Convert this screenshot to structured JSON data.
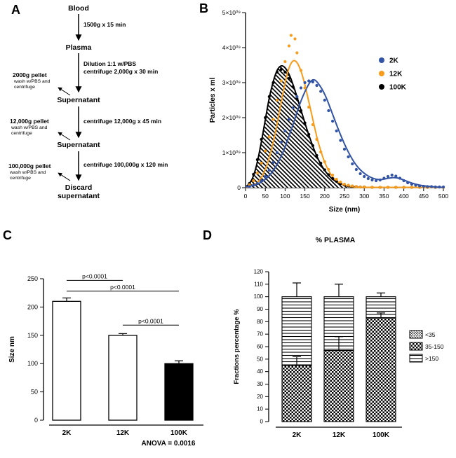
{
  "panels": {
    "a": "A",
    "b": "B",
    "c": "C",
    "d": "D"
  },
  "flowchart": {
    "blood": "Blood",
    "step1": "1500g x 15 min",
    "plasma": "Plasma",
    "step2": "Dilution 1:1 w/PBS\ncentrifuge 2,000g x 30 min",
    "supernatant1": "Supernatant",
    "pellet1": "2000g pellet",
    "pellet1_note": "wash w/PBS and\ncentrifuge",
    "step3": "centrifuge 12,000g x 45 min",
    "supernatant2": "Supernatant",
    "pellet2": "12,000g pellet",
    "pellet2_note": "wash w/PBS and\ncentrifuge",
    "step4": "centrifuge 100,000g x 120 min",
    "pellet3": "100,000g pellet",
    "pellet3_note": "wash w/PBS and\ncentrifuge",
    "discard": "Discard\nsupernatant"
  },
  "chart_data": [
    {
      "type": "line",
      "panel": "B",
      "xlabel": "Size (nm)",
      "ylabel": "Particles x ml",
      "xlim": [
        0,
        500
      ],
      "ylim": [
        0,
        5
      ],
      "y_unit": "×10⁹",
      "x_ticks": [
        0,
        50,
        100,
        150,
        200,
        250,
        300,
        350,
        400,
        450,
        500
      ],
      "y_ticks": [
        {
          "v": 0,
          "label": "0"
        },
        {
          "v": 1,
          "label": "1×10⁰⁹"
        },
        {
          "v": 2,
          "label": "2×10⁰⁹"
        },
        {
          "v": 3,
          "label": "3×10⁰⁹"
        },
        {
          "v": 4,
          "label": "4×10⁰⁹"
        },
        {
          "v": 5,
          "label": "5×10⁰⁹"
        }
      ],
      "legend_position": "upper-right",
      "series": [
        {
          "name": "2K",
          "color": "#3353a4",
          "line": [
            [
              0,
              0.02
            ],
            [
              20,
              0.06
            ],
            [
              40,
              0.15
            ],
            [
              60,
              0.33
            ],
            [
              80,
              0.65
            ],
            [
              100,
              1.15
            ],
            [
              120,
              1.8
            ],
            [
              140,
              2.5
            ],
            [
              160,
              2.98
            ],
            [
              170,
              3.1
            ],
            [
              180,
              3.05
            ],
            [
              200,
              2.7
            ],
            [
              220,
              2.1
            ],
            [
              240,
              1.5
            ],
            [
              260,
              1.0
            ],
            [
              280,
              0.62
            ],
            [
              300,
              0.4
            ],
            [
              320,
              0.27
            ],
            [
              340,
              0.22
            ],
            [
              360,
              0.27
            ],
            [
              380,
              0.3
            ],
            [
              400,
              0.22
            ],
            [
              420,
              0.13
            ],
            [
              440,
              0.07
            ],
            [
              460,
              0.04
            ],
            [
              480,
              0.02
            ],
            [
              500,
              0.01
            ]
          ],
          "dots": [
            [
              10,
              0.03
            ],
            [
              20,
              0.07
            ],
            [
              30,
              0.12
            ],
            [
              40,
              0.2
            ],
            [
              50,
              0.32
            ],
            [
              60,
              0.5
            ],
            [
              70,
              0.72
            ],
            [
              80,
              1.0
            ],
            [
              90,
              1.3
            ],
            [
              100,
              1.62
            ],
            [
              110,
              1.95
            ],
            [
              120,
              2.28
            ],
            [
              130,
              2.6
            ],
            [
              140,
              2.85
            ],
            [
              150,
              3.0
            ],
            [
              160,
              3.05
            ],
            [
              170,
              3.02
            ],
            [
              180,
              2.92
            ],
            [
              190,
              2.75
            ],
            [
              200,
              2.5
            ],
            [
              210,
              2.2
            ],
            [
              220,
              1.9
            ],
            [
              230,
              1.62
            ],
            [
              240,
              1.35
            ],
            [
              250,
              1.1
            ],
            [
              260,
              0.88
            ],
            [
              270,
              0.68
            ],
            [
              280,
              0.52
            ],
            [
              290,
              0.4
            ],
            [
              300,
              0.32
            ],
            [
              310,
              0.26
            ],
            [
              320,
              0.22
            ],
            [
              330,
              0.2
            ],
            [
              340,
              0.22
            ],
            [
              350,
              0.27
            ],
            [
              360,
              0.32
            ],
            [
              370,
              0.36
            ],
            [
              380,
              0.33
            ],
            [
              390,
              0.27
            ],
            [
              400,
              0.2
            ],
            [
              410,
              0.14
            ],
            [
              420,
              0.1
            ],
            [
              430,
              0.07
            ],
            [
              440,
              0.05
            ],
            [
              450,
              0.04
            ],
            [
              460,
              0.03
            ],
            [
              470,
              0.03
            ],
            [
              480,
              0.02
            ],
            [
              490,
              0.02
            ],
            [
              500,
              0.02
            ]
          ]
        },
        {
          "name": "12K",
          "color": "#f89c1c",
          "line": [
            [
              0,
              0.01
            ],
            [
              20,
              0.05
            ],
            [
              40,
              0.25
            ],
            [
              60,
              0.8
            ],
            [
              80,
              1.8
            ],
            [
              90,
              2.45
            ],
            [
              100,
              3.0
            ],
            [
              110,
              3.45
            ],
            [
              120,
              3.65
            ],
            [
              130,
              3.6
            ],
            [
              140,
              3.35
            ],
            [
              150,
              2.95
            ],
            [
              160,
              2.45
            ],
            [
              170,
              1.95
            ],
            [
              180,
              1.45
            ],
            [
              190,
              1.05
            ],
            [
              200,
              0.72
            ],
            [
              210,
              0.48
            ],
            [
              220,
              0.3
            ],
            [
              230,
              0.19
            ],
            [
              240,
              0.12
            ],
            [
              250,
              0.07
            ],
            [
              260,
              0.04
            ],
            [
              270,
              0.02
            ],
            [
              280,
              0.01
            ],
            [
              300,
              0.01
            ],
            [
              350,
              0.01
            ],
            [
              400,
              0.01
            ],
            [
              450,
              0.01
            ],
            [
              500,
              0.01
            ]
          ],
          "dots": [
            [
              10,
              0.08
            ],
            [
              20,
              0.2
            ],
            [
              30,
              0.42
            ],
            [
              40,
              0.7
            ],
            [
              50,
              1.05
            ],
            [
              60,
              1.45
            ],
            [
              70,
              1.95
            ],
            [
              80,
              2.5
            ],
            [
              90,
              3.05
            ],
            [
              100,
              3.6
            ],
            [
              110,
              4.05
            ],
            [
              115,
              4.35
            ],
            [
              125,
              4.25
            ],
            [
              130,
              3.85
            ],
            [
              140,
              3.35
            ],
            [
              150,
              2.85
            ],
            [
              160,
              2.3
            ],
            [
              170,
              1.8
            ],
            [
              180,
              1.38
            ],
            [
              190,
              1.02
            ],
            [
              200,
              0.74
            ],
            [
              210,
              0.52
            ],
            [
              220,
              0.36
            ],
            [
              230,
              0.24
            ],
            [
              240,
              0.16
            ],
            [
              250,
              0.1
            ],
            [
              260,
              0.07
            ],
            [
              270,
              0.05
            ],
            [
              280,
              0.03
            ],
            [
              290,
              0.02
            ],
            [
              300,
              0.02
            ],
            [
              320,
              0.01
            ],
            [
              340,
              0.01
            ],
            [
              360,
              0.01
            ],
            [
              380,
              0.01
            ],
            [
              400,
              0.01
            ],
            [
              420,
              0.01
            ],
            [
              440,
              0.01
            ],
            [
              460,
              0.01
            ],
            [
              480,
              0.01
            ],
            [
              500,
              0.01
            ]
          ]
        },
        {
          "name": "100K",
          "color": "#000000",
          "fill": "hatch",
          "line": [
            [
              0,
              0.02
            ],
            [
              10,
              0.1
            ],
            [
              20,
              0.32
            ],
            [
              30,
              0.72
            ],
            [
              40,
              1.3
            ],
            [
              50,
              1.95
            ],
            [
              60,
              2.58
            ],
            [
              70,
              3.05
            ],
            [
              80,
              3.38
            ],
            [
              90,
              3.5
            ],
            [
              100,
              3.44
            ],
            [
              110,
              3.25
            ],
            [
              120,
              2.95
            ],
            [
              130,
              2.6
            ],
            [
              140,
              2.22
            ],
            [
              150,
              1.85
            ],
            [
              160,
              1.5
            ],
            [
              170,
              1.18
            ],
            [
              180,
              0.9
            ],
            [
              190,
              0.67
            ],
            [
              200,
              0.49
            ],
            [
              210,
              0.35
            ],
            [
              220,
              0.24
            ],
            [
              230,
              0.16
            ],
            [
              240,
              0.11
            ],
            [
              250,
              0.07
            ],
            [
              260,
              0.04
            ],
            [
              270,
              0.03
            ],
            [
              280,
              0.02
            ],
            [
              290,
              0.01
            ],
            [
              300,
              0.01
            ]
          ],
          "dots": [
            [
              10,
              0.12
            ],
            [
              20,
              0.38
            ],
            [
              30,
              0.8
            ],
            [
              40,
              1.38
            ],
            [
              50,
              2.0
            ],
            [
              60,
              2.6
            ],
            [
              70,
              3.0
            ],
            [
              80,
              3.3
            ],
            [
              90,
              3.38
            ],
            [
              100,
              3.3
            ],
            [
              110,
              3.12
            ],
            [
              120,
              2.88
            ],
            [
              130,
              2.55
            ],
            [
              140,
              2.2
            ],
            [
              150,
              1.85
            ],
            [
              160,
              1.52
            ],
            [
              170,
              1.2
            ],
            [
              180,
              0.92
            ],
            [
              190,
              0.7
            ],
            [
              200,
              0.51
            ],
            [
              210,
              0.37
            ],
            [
              220,
              0.26
            ],
            [
              230,
              0.18
            ],
            [
              240,
              0.12
            ],
            [
              250,
              0.08
            ],
            [
              260,
              0.05
            ],
            [
              270,
              0.04
            ],
            [
              280,
              0.03
            ],
            [
              290,
              0.02
            ],
            [
              300,
              0.02
            ],
            [
              320,
              0.01
            ],
            [
              340,
              0.01
            ],
            [
              360,
              0.01
            ],
            [
              380,
              0.01
            ],
            [
              400,
              0.01
            ],
            [
              420,
              0.01
            ],
            [
              440,
              0.01
            ],
            [
              460,
              0.01
            ],
            [
              480,
              0.01
            ],
            [
              500,
              0.01
            ]
          ]
        }
      ]
    },
    {
      "type": "bar",
      "panel": "C",
      "categories": [
        "2K",
        "12K",
        "100K"
      ],
      "values": [
        210,
        150,
        100
      ],
      "errors": [
        6,
        3,
        5
      ],
      "bar_colors": [
        "#ffffff",
        "#ffffff",
        "#000000"
      ],
      "ylabel": "Size nm",
      "ylim": [
        0,
        250
      ],
      "y_ticks": [
        0,
        50,
        100,
        150,
        200,
        250
      ],
      "significance": [
        {
          "from": 0,
          "to": 1,
          "label": "p<0.0001",
          "level": 247
        },
        {
          "from": 0,
          "to": 2,
          "label": "p<0.0001",
          "level": 228
        },
        {
          "from": 1,
          "to": 2,
          "label": "p<0.0001",
          "level": 168
        }
      ],
      "annotation": "ANOVA = 0.0016"
    },
    {
      "type": "stacked-bar",
      "panel": "D",
      "title": "% PLASMA",
      "categories": [
        "2K",
        "12K",
        "100K"
      ],
      "series": [
        {
          "name": "<35",
          "pattern": "dots",
          "values": [
            0,
            0,
            0
          ]
        },
        {
          "name": "35-150",
          "pattern": "checker",
          "values": [
            45,
            57,
            83
          ]
        },
        {
          "name": ">150",
          "pattern": "hlines",
          "values": [
            55,
            43,
            17
          ]
        }
      ],
      "segment_errors": [
        7,
        11,
        4
      ],
      "total_errors": [
        11,
        10,
        3
      ],
      "ylabel": "Fractions percentage %",
      "ylim": [
        0,
        120
      ],
      "y_ticks": [
        0,
        10,
        20,
        30,
        40,
        50,
        60,
        70,
        80,
        90,
        100,
        110,
        120
      ],
      "legend_position": "right"
    }
  ]
}
